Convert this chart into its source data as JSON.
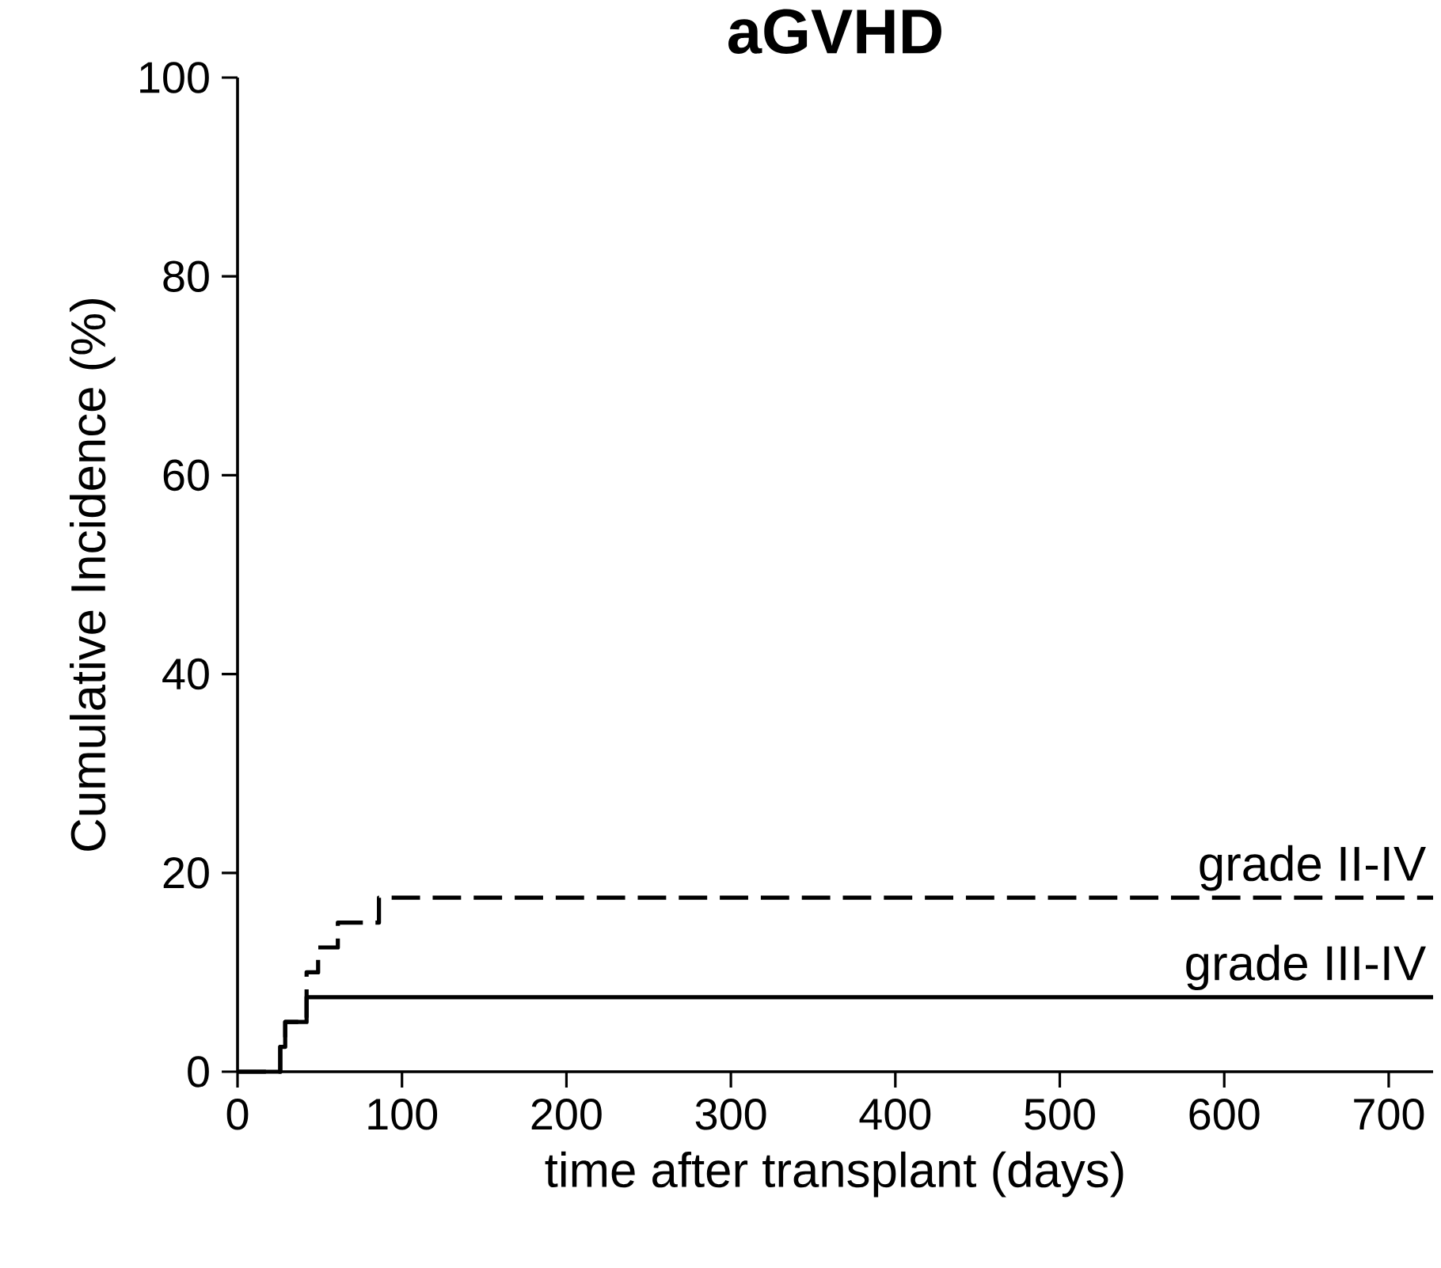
{
  "chart_data": {
    "type": "step",
    "title": "aGVHD",
    "xlabel": "time after transplant (days)",
    "ylabel": "Cumulative Incidence (%)",
    "xlim": [
      0,
      727
    ],
    "ylim": [
      0,
      100
    ],
    "xticks": [
      0,
      100,
      200,
      300,
      400,
      500,
      600,
      700
    ],
    "yticks": [
      0,
      20,
      40,
      60,
      80,
      100
    ],
    "legend": false,
    "grid": false,
    "series": [
      {
        "name": "grade II-IV",
        "color": "#000000",
        "line_style": "dashed",
        "x": [
          0,
          26,
          29,
          42,
          49,
          61,
          86,
          727
        ],
        "values": [
          0,
          2.5,
          5,
          10,
          12.5,
          15,
          17.5,
          17.5
        ]
      },
      {
        "name": "grade III-IV",
        "color": "#000000",
        "line_style": "solid",
        "x": [
          0,
          26,
          29,
          42,
          727
        ],
        "values": [
          0,
          2.5,
          5,
          7.5,
          7.5
        ]
      }
    ]
  }
}
